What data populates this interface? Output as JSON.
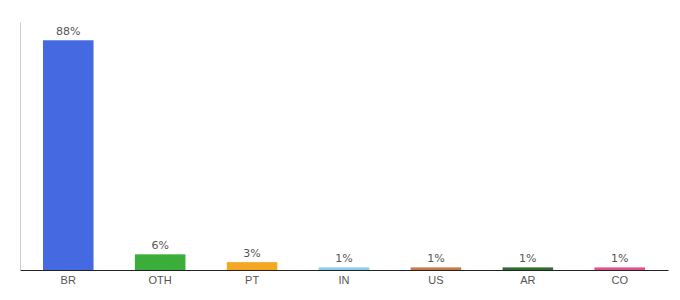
{
  "chart_data": {
    "type": "bar",
    "categories": [
      "BR",
      "OTH",
      "PT",
      "IN",
      "US",
      "AR",
      "CO"
    ],
    "values": [
      88,
      6,
      3,
      1,
      1,
      1,
      1
    ],
    "value_labels": [
      "88%",
      "6%",
      "3%",
      "1%",
      "1%",
      "1%",
      "1%"
    ],
    "data_labels": true,
    "colors": [
      "#4469e0",
      "#3aad3a",
      "#f5a623",
      "#87ceeb",
      "#c87941",
      "#2e6b2e",
      "#e05090"
    ],
    "ylim": [
      0,
      95
    ],
    "tick_labels": "x"
  }
}
